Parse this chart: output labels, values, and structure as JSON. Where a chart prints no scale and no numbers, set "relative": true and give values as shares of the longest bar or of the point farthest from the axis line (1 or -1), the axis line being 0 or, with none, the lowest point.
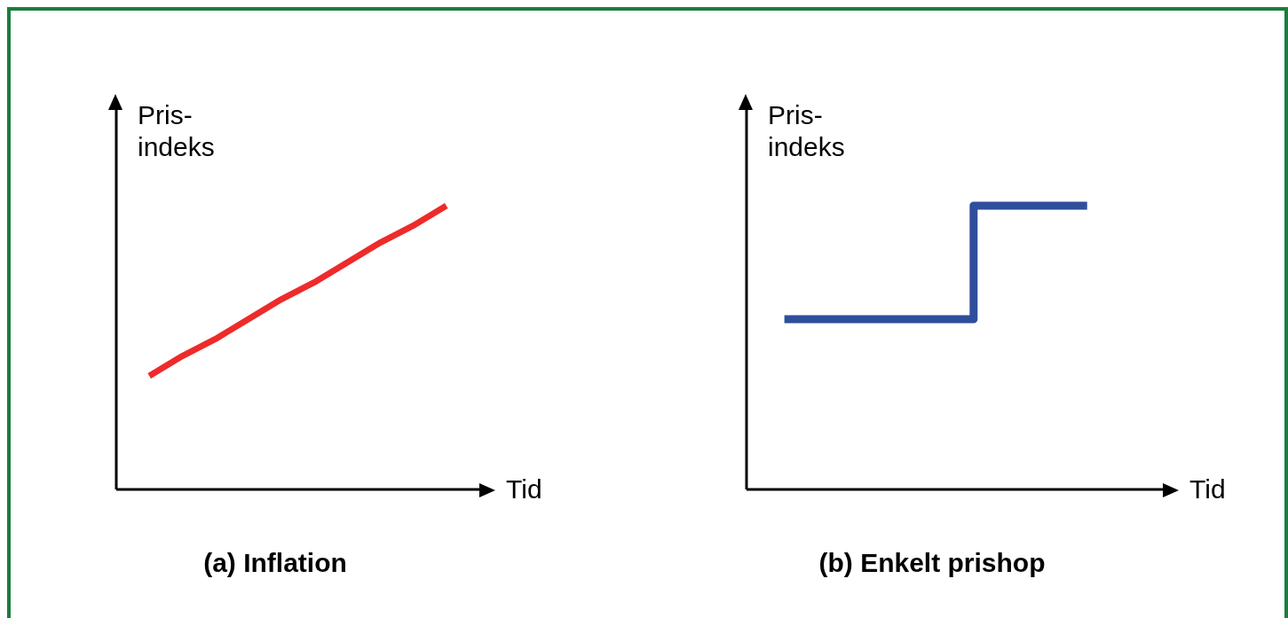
{
  "chart_data": [
    {
      "type": "line",
      "title": "(a) Inflation",
      "xlabel": "Tid",
      "ylabel": "Pris-\nindeks",
      "relative": true,
      "marker": "none",
      "categories": [
        null,
        null,
        null,
        null,
        null,
        null,
        null,
        null,
        null,
        null,
        null,
        null
      ],
      "series": [
        {
          "color": "#ee2b2b",
          "values": [
            null,
            0.4,
            0.47,
            0.53,
            0.6,
            0.67,
            0.73,
            0.8,
            0.87,
            0.93,
            1,
            null
          ]
        }
      ]
    },
    {
      "type": "step",
      "title": "(b) Enkelt prishop",
      "xlabel": "Tid",
      "ylabel": "Pris-\nindeks",
      "relative": true,
      "marker": "none",
      "categories": [
        null,
        null,
        null,
        null,
        null,
        null,
        null,
        null,
        null,
        null,
        null,
        null
      ],
      "series": [
        {
          "color": "#2e4f9c",
          "values": [
            null,
            0.6,
            0.6,
            0.6,
            0.6,
            0.6,
            1,
            1,
            1,
            1,
            null,
            null
          ]
        }
      ]
    }
  ]
}
